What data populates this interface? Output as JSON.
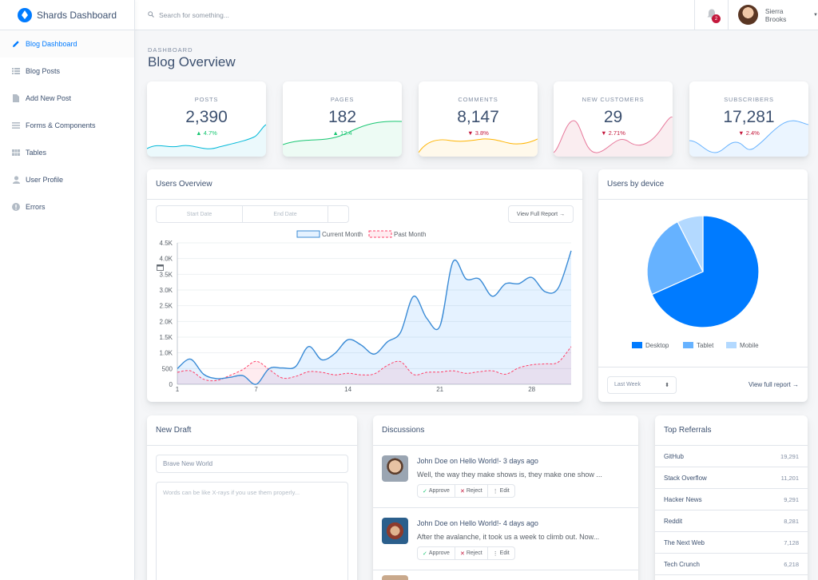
{
  "brand": {
    "title": "Shards Dashboard"
  },
  "sidebar": {
    "items": [
      {
        "label": "Blog Dashboard",
        "icon": "pencil-icon"
      },
      {
        "label": "Blog Posts",
        "icon": "list-icon"
      },
      {
        "label": "Add New Post",
        "icon": "document-icon"
      },
      {
        "label": "Forms & Components",
        "icon": "menu-icon"
      },
      {
        "label": "Tables",
        "icon": "table-icon"
      },
      {
        "label": "User Profile",
        "icon": "user-icon"
      },
      {
        "label": "Errors",
        "icon": "error-icon"
      }
    ]
  },
  "topbar": {
    "search_placeholder": "Search for something...",
    "notifications_count": "2",
    "user_name": "Sierra Brooks"
  },
  "page": {
    "subtitle": "DASHBOARD",
    "title": "Blog Overview"
  },
  "stats": [
    {
      "label": "Posts",
      "value": "2,390",
      "change": "4.7%",
      "direction": "up",
      "color": "#17c671"
    },
    {
      "label": "Pages",
      "value": "182",
      "change": "12.4",
      "direction": "up",
      "color": "#17c671"
    },
    {
      "label": "Comments",
      "value": "8,147",
      "change": "3.8%",
      "direction": "down",
      "color": "#ffb400"
    },
    {
      "label": "New Customers",
      "value": "29",
      "change": "2.71%",
      "direction": "down",
      "color": "#c4183c"
    },
    {
      "label": "Subscribers",
      "value": "17,281",
      "change": "2.4%",
      "direction": "down",
      "color": "#007bff"
    }
  ],
  "users_overview": {
    "title": "Users Overview",
    "start_date_placeholder": "Start Date",
    "end_date_placeholder": "End Date",
    "view_report_label": "View Full Report →"
  },
  "chart_data": [
    {
      "type": "line",
      "title": "Users Overview",
      "series": [
        {
          "name": "Current Month",
          "color": "#007bff",
          "values": [
            500,
            800,
            320,
            180,
            220,
            275,
            0,
            500,
            520,
            560,
            1200,
            780,
            980,
            1420,
            1250,
            960,
            1350,
            1650,
            2800,
            2100,
            1850,
            3900,
            3350,
            3350,
            2800,
            3200,
            3200,
            3400,
            2950,
            3050,
            4250
          ]
        },
        {
          "name": "Past Month",
          "color": "#ff4169",
          "values": [
            380,
            430,
            160,
            120,
            280,
            470,
            730,
            470,
            200,
            250,
            400,
            380,
            300,
            350,
            300,
            330,
            600,
            720,
            310,
            380,
            390,
            430,
            350,
            400,
            430,
            320,
            520,
            620,
            650,
            700,
            1200
          ]
        }
      ],
      "xticks": [
        "1",
        "7",
        "14",
        "21",
        "28"
      ],
      "yticks": [
        "0",
        "500",
        "1.0K",
        "1.5K",
        "2.0K",
        "2.5K",
        "3.0K",
        "3.5K",
        "4.0K",
        "4.5K"
      ],
      "ylim": [
        0,
        4500
      ],
      "legend": "top"
    },
    {
      "type": "pie",
      "title": "Users by device",
      "categories": [
        "Desktop",
        "Tablet",
        "Mobile"
      ],
      "values": [
        68.3,
        24.2,
        7.5
      ],
      "colors": [
        "#007bff",
        "#66b2ff",
        "#b3d9ff"
      ],
      "legend": "bottom"
    }
  ],
  "users_by_device": {
    "title": "Users by device",
    "select_value": "Last Week",
    "view_report_label": "View full report →"
  },
  "new_draft": {
    "title": "New Draft",
    "title_value": "Brave New World",
    "body_placeholder": "Words can be like X-rays if you use them properly..."
  },
  "discussions": {
    "title": "Discussions",
    "items": [
      {
        "author": "John Doe",
        "post": "Hello World!",
        "when": "3 days ago",
        "text": "Well, the way they make shows is, they make one show ..."
      },
      {
        "author": "John Doe",
        "post": "Hello World!",
        "when": "4 days ago",
        "text": "After the avalanche, it took us a week to climb out. Now..."
      }
    ],
    "approve_label": "Approve",
    "reject_label": "Reject",
    "edit_label": "Edit"
  },
  "referrals": {
    "title": "Top Referrals",
    "items": [
      {
        "name": "GitHub",
        "value": "19,291"
      },
      {
        "name": "Stack Overflow",
        "value": "11,201"
      },
      {
        "name": "Hacker News",
        "value": "9,291"
      },
      {
        "name": "Reddit",
        "value": "8,281"
      },
      {
        "name": "The Next Web",
        "value": "7,128"
      },
      {
        "name": "Tech Crunch",
        "value": "6,218"
      }
    ]
  }
}
